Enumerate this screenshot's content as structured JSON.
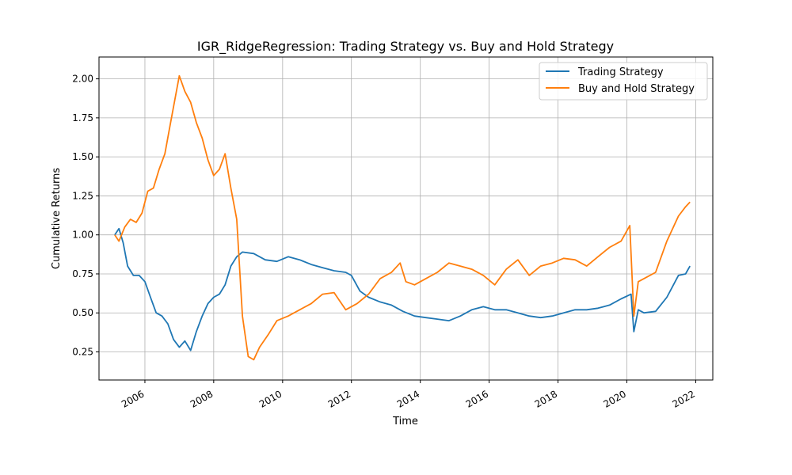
{
  "chart_data": {
    "type": "line",
    "title": "IGR_RidgeRegression: Trading Strategy vs. Buy and Hold Strategy",
    "xlabel": "Time",
    "ylabel": "Cumulative Returns",
    "xlim": [
      "2004-09-01",
      "2022-07-01"
    ],
    "ylim": [
      0.07,
      2.14
    ],
    "xticks": [
      "2006",
      "2008",
      "2010",
      "2012",
      "2014",
      "2016",
      "2018",
      "2020",
      "2022"
    ],
    "yticks": [
      "0.25",
      "0.50",
      "0.75",
      "1.00",
      "1.25",
      "1.50",
      "1.75",
      "2.00"
    ],
    "grid": true,
    "legend_position": "top-right",
    "series": [
      {
        "name": "Trading Strategy",
        "color": "#1f77b4",
        "points": [
          [
            "2005-02-15",
            1.0
          ],
          [
            "2005-04-01",
            1.04
          ],
          [
            "2005-05-15",
            0.95
          ],
          [
            "2005-07-01",
            0.8
          ],
          [
            "2005-09-01",
            0.74
          ],
          [
            "2005-11-01",
            0.74
          ],
          [
            "2006-01-01",
            0.7
          ],
          [
            "2006-03-01",
            0.6
          ],
          [
            "2006-05-01",
            0.5
          ],
          [
            "2006-07-01",
            0.48
          ],
          [
            "2006-09-01",
            0.43
          ],
          [
            "2006-11-01",
            0.33
          ],
          [
            "2007-01-01",
            0.28
          ],
          [
            "2007-03-01",
            0.32
          ],
          [
            "2007-05-01",
            0.26
          ],
          [
            "2007-07-01",
            0.38
          ],
          [
            "2007-09-01",
            0.48
          ],
          [
            "2007-11-01",
            0.56
          ],
          [
            "2008-01-01",
            0.6
          ],
          [
            "2008-03-01",
            0.62
          ],
          [
            "2008-05-01",
            0.68
          ],
          [
            "2008-07-01",
            0.8
          ],
          [
            "2008-09-01",
            0.86
          ],
          [
            "2008-11-01",
            0.89
          ],
          [
            "2009-03-01",
            0.88
          ],
          [
            "2009-07-01",
            0.84
          ],
          [
            "2009-11-01",
            0.83
          ],
          [
            "2010-03-01",
            0.86
          ],
          [
            "2010-07-01",
            0.84
          ],
          [
            "2010-11-01",
            0.81
          ],
          [
            "2011-03-01",
            0.79
          ],
          [
            "2011-07-01",
            0.77
          ],
          [
            "2011-11-01",
            0.76
          ],
          [
            "2012-01-01",
            0.74
          ],
          [
            "2012-04-01",
            0.64
          ],
          [
            "2012-07-01",
            0.6
          ],
          [
            "2012-11-01",
            0.57
          ],
          [
            "2013-03-01",
            0.55
          ],
          [
            "2013-07-01",
            0.51
          ],
          [
            "2013-11-01",
            0.48
          ],
          [
            "2014-03-01",
            0.47
          ],
          [
            "2014-07-01",
            0.46
          ],
          [
            "2014-11-01",
            0.45
          ],
          [
            "2015-03-01",
            0.48
          ],
          [
            "2015-07-01",
            0.52
          ],
          [
            "2015-11-01",
            0.54
          ],
          [
            "2016-03-01",
            0.52
          ],
          [
            "2016-07-01",
            0.52
          ],
          [
            "2016-11-01",
            0.5
          ],
          [
            "2017-03-01",
            0.48
          ],
          [
            "2017-07-01",
            0.47
          ],
          [
            "2017-11-01",
            0.48
          ],
          [
            "2018-03-01",
            0.5
          ],
          [
            "2018-07-01",
            0.52
          ],
          [
            "2018-11-01",
            0.52
          ],
          [
            "2019-03-01",
            0.53
          ],
          [
            "2019-07-01",
            0.55
          ],
          [
            "2019-11-01",
            0.59
          ],
          [
            "2020-02-15",
            0.62
          ],
          [
            "2020-03-15",
            0.38
          ],
          [
            "2020-05-01",
            0.52
          ],
          [
            "2020-07-01",
            0.5
          ],
          [
            "2020-11-01",
            0.51
          ],
          [
            "2021-03-01",
            0.6
          ],
          [
            "2021-07-01",
            0.74
          ],
          [
            "2021-09-15",
            0.75
          ],
          [
            "2021-11-01",
            0.8
          ]
        ]
      },
      {
        "name": "Buy and Hold Strategy",
        "color": "#ff7f0e",
        "points": [
          [
            "2005-02-15",
            1.0
          ],
          [
            "2005-04-01",
            0.96
          ],
          [
            "2005-06-01",
            1.05
          ],
          [
            "2005-08-01",
            1.1
          ],
          [
            "2005-10-01",
            1.08
          ],
          [
            "2005-12-01",
            1.14
          ],
          [
            "2006-02-01",
            1.28
          ],
          [
            "2006-04-01",
            1.3
          ],
          [
            "2006-06-01",
            1.42
          ],
          [
            "2006-08-01",
            1.52
          ],
          [
            "2006-10-01",
            1.72
          ],
          [
            "2007-01-01",
            2.02
          ],
          [
            "2007-03-01",
            1.92
          ],
          [
            "2007-05-01",
            1.85
          ],
          [
            "2007-07-01",
            1.72
          ],
          [
            "2007-09-01",
            1.62
          ],
          [
            "2007-11-01",
            1.48
          ],
          [
            "2008-01-01",
            1.38
          ],
          [
            "2008-03-01",
            1.42
          ],
          [
            "2008-05-01",
            1.52
          ],
          [
            "2008-07-01",
            1.3
          ],
          [
            "2008-09-01",
            1.1
          ],
          [
            "2008-11-01",
            0.48
          ],
          [
            "2009-01-01",
            0.22
          ],
          [
            "2009-03-01",
            0.2
          ],
          [
            "2009-05-01",
            0.28
          ],
          [
            "2009-08-01",
            0.36
          ],
          [
            "2009-11-01",
            0.45
          ],
          [
            "2010-03-01",
            0.48
          ],
          [
            "2010-07-01",
            0.52
          ],
          [
            "2010-11-01",
            0.56
          ],
          [
            "2011-03-01",
            0.62
          ],
          [
            "2011-07-01",
            0.63
          ],
          [
            "2011-11-01",
            0.52
          ],
          [
            "2012-03-01",
            0.56
          ],
          [
            "2012-07-01",
            0.62
          ],
          [
            "2012-11-01",
            0.72
          ],
          [
            "2013-03-01",
            0.76
          ],
          [
            "2013-06-01",
            0.82
          ],
          [
            "2013-08-01",
            0.7
          ],
          [
            "2013-11-01",
            0.68
          ],
          [
            "2014-03-01",
            0.72
          ],
          [
            "2014-07-01",
            0.76
          ],
          [
            "2014-11-01",
            0.82
          ],
          [
            "2015-03-01",
            0.8
          ],
          [
            "2015-07-01",
            0.78
          ],
          [
            "2015-11-01",
            0.74
          ],
          [
            "2016-03-01",
            0.68
          ],
          [
            "2016-07-01",
            0.78
          ],
          [
            "2016-11-01",
            0.84
          ],
          [
            "2017-03-01",
            0.74
          ],
          [
            "2017-07-01",
            0.8
          ],
          [
            "2017-11-01",
            0.82
          ],
          [
            "2018-03-01",
            0.85
          ],
          [
            "2018-07-01",
            0.84
          ],
          [
            "2018-11-01",
            0.8
          ],
          [
            "2019-03-01",
            0.86
          ],
          [
            "2019-07-01",
            0.92
          ],
          [
            "2019-11-01",
            0.96
          ],
          [
            "2020-02-01",
            1.06
          ],
          [
            "2020-03-15",
            0.48
          ],
          [
            "2020-05-01",
            0.7
          ],
          [
            "2020-07-01",
            0.72
          ],
          [
            "2020-11-01",
            0.76
          ],
          [
            "2021-03-01",
            0.96
          ],
          [
            "2021-07-01",
            1.12
          ],
          [
            "2021-09-15",
            1.18
          ],
          [
            "2021-11-01",
            1.21
          ]
        ]
      }
    ]
  }
}
